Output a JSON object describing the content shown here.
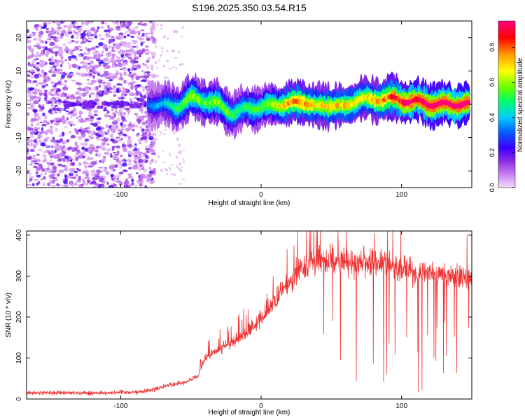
{
  "figure": {
    "title": "S196.2025.350.03.54.R15"
  },
  "chart_data": [
    {
      "type": "heatmap",
      "xlabel": "Height of straight line (km)",
      "ylabel": "Frequency (Hz)",
      "xlim": [
        -167,
        150
      ],
      "ylim": [
        -25,
        25
      ],
      "xticks": [
        -100,
        0,
        100
      ],
      "yticks": [
        -20,
        -10,
        0,
        10,
        20
      ],
      "colorbar": {
        "label": "Normalized spectral amplitude",
        "range": [
          0,
          0.95
        ],
        "ticks": [
          0.0,
          0.2,
          0.4,
          0.6,
          0.8
        ],
        "colors": [
          "#f2dcf7",
          "#8a2be2",
          "#0000ff",
          "#00ccff",
          "#00ff66",
          "#66ff00",
          "#ffff00",
          "#ff9900",
          "#ff0000",
          "#ff0080"
        ]
      },
      "noise_region_km": [
        -167,
        -80
      ],
      "signal_band": {
        "x": [
          -80,
          -70,
          -60,
          -50,
          -40,
          -30,
          -20,
          -10,
          0,
          10,
          20,
          30,
          40,
          50,
          60,
          70,
          80,
          90,
          100,
          110,
          120,
          130,
          140,
          148
        ],
        "freq_hz": [
          0,
          0,
          -1,
          2,
          1,
          0,
          -3,
          -1,
          -1,
          0,
          0,
          1,
          -1,
          0,
          -1,
          2,
          1,
          2,
          1,
          1,
          0,
          0,
          0,
          0
        ],
        "amplitude": [
          0.3,
          0.35,
          0.45,
          0.55,
          0.5,
          0.55,
          0.45,
          0.45,
          0.5,
          0.55,
          0.7,
          0.7,
          0.6,
          0.65,
          0.65,
          0.6,
          0.65,
          0.7,
          0.8,
          0.85,
          0.88,
          0.9,
          0.92,
          0.92
        ]
      }
    },
    {
      "type": "line",
      "xlabel": "Height of straight line (km)",
      "ylabel": "SNR (10 * v/v)",
      "xlim": [
        -167,
        150
      ],
      "ylim": [
        0,
        410
      ],
      "xticks": [
        -100,
        0,
        100
      ],
      "yticks": [
        0,
        100,
        200,
        300,
        400
      ],
      "series": [
        {
          "name": "SNR",
          "color": "#ee3333",
          "x": [
            -167,
            -140,
            -110,
            -85,
            -75,
            -65,
            -55,
            -45,
            -40,
            -30,
            -20,
            -10,
            0,
            10,
            20,
            25,
            35,
            45,
            55,
            70,
            85,
            100,
            115,
            130,
            150
          ],
          "y": [
            15,
            15,
            15,
            18,
            25,
            35,
            40,
            55,
            100,
            120,
            140,
            165,
            195,
            240,
            285,
            310,
            335,
            340,
            335,
            335,
            330,
            320,
            305,
            300,
            295
          ]
        }
      ]
    }
  ]
}
